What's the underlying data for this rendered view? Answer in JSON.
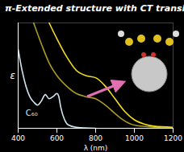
{
  "chart_data": {
    "type": "line",
    "title": "π-Extended structure with CT transitions",
    "x_label": "λ (nm)",
    "y_label": "ε",
    "xlim": [
      400,
      1200
    ],
    "xticks": [
      400,
      600,
      800,
      1000,
      1200
    ],
    "ylim": [
      0,
      100
    ],
    "yticks": [],
    "tick_labels": "x",
    "series": [
      {
        "name": "C₆₀",
        "color": "#cfe6ee",
        "x": [
          400,
          420,
          440,
          460,
          480,
          500,
          520,
          540,
          560,
          580,
          600,
          610,
          620,
          640,
          660,
          700,
          800
        ],
        "values": [
          75,
          55,
          40,
          30,
          25,
          22,
          26,
          32,
          28,
          30,
          33,
          30,
          20,
          8,
          3,
          1,
          0
        ]
      },
      {
        "color": "#a89a20",
        "x": [
          480,
          520,
          560,
          600,
          650,
          700,
          750,
          800,
          850,
          900,
          950,
          1000,
          1100,
          1200
        ],
        "values": [
          100,
          80,
          62,
          50,
          40,
          33,
          30,
          28,
          22,
          14,
          7,
          3,
          1,
          0
        ]
      },
      {
        "color": "#f0dc1e",
        "x": [
          560,
          600,
          650,
          700,
          750,
          800,
          850,
          900,
          950,
          1000,
          1050,
          1100,
          1200
        ],
        "values": [
          100,
          85,
          68,
          55,
          50,
          48,
          40,
          28,
          16,
          8,
          4,
          2,
          1
        ]
      }
    ],
    "annotations": [
      {
        "text": "C₆₀",
        "x": 470,
        "y": 14,
        "color": "#cfe6ee"
      }
    ]
  }
}
